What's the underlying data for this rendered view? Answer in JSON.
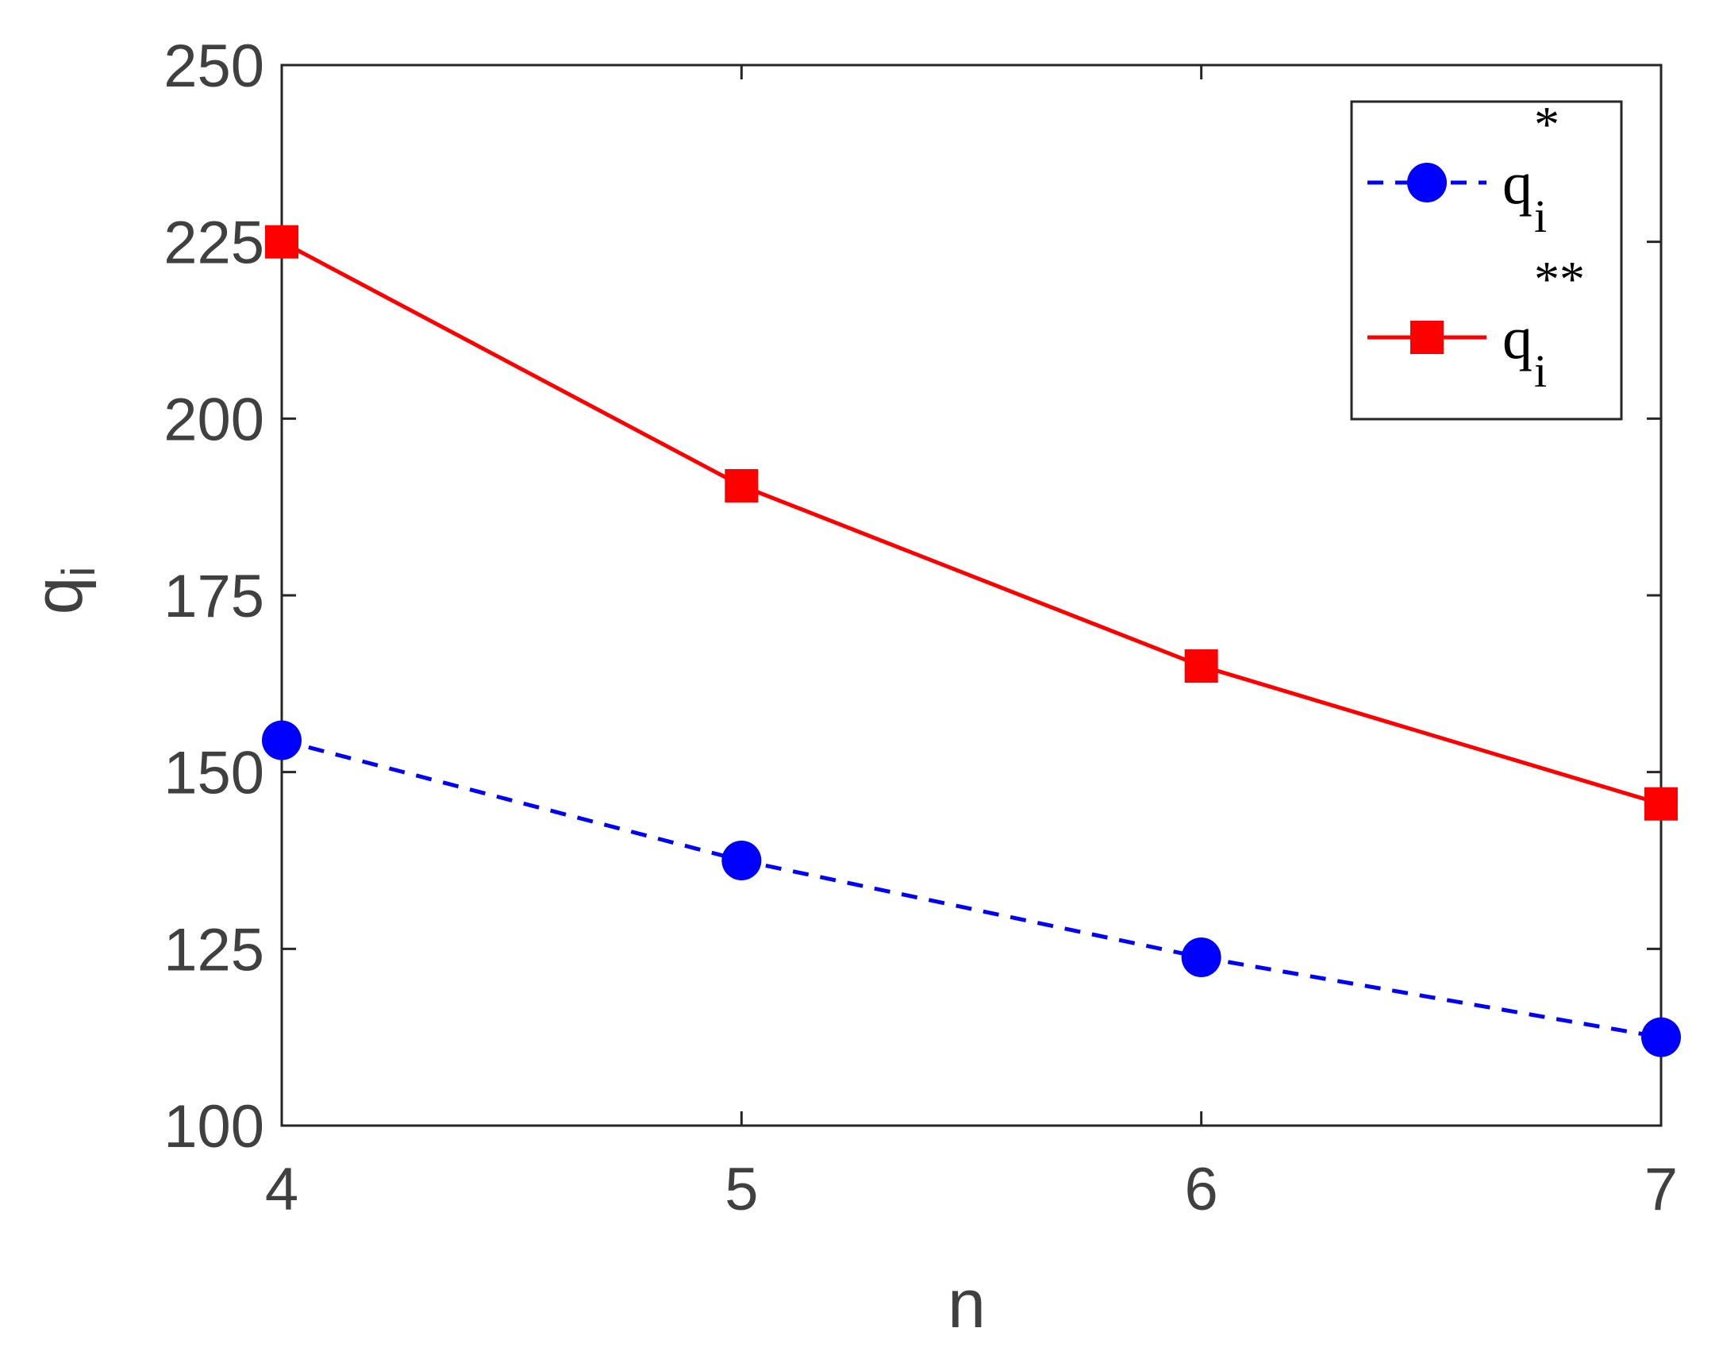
{
  "chart_data": {
    "type": "line",
    "title": "",
    "xlabel": "n",
    "ylabel": {
      "base": "q",
      "sub": "i"
    },
    "x": [
      4,
      5,
      6,
      7
    ],
    "xticks": [
      "4",
      "5",
      "6",
      "7"
    ],
    "yticks": [
      "100",
      "125",
      "150",
      "175",
      "200",
      "225",
      "250"
    ],
    "xlim": [
      4,
      7
    ],
    "ylim": [
      100,
      250
    ],
    "grid": false,
    "legend_position": "top-right",
    "series": [
      {
        "base": "q",
        "sub": "i",
        "sup": "*",
        "values": [
          154.5,
          137.5,
          123.8,
          112.5
        ],
        "color": "#0000ff",
        "line_style": "dashed",
        "marker": "circle"
      },
      {
        "base": "q",
        "sub": "i",
        "sup": "**",
        "values": [
          225,
          190.5,
          165,
          145.5
        ],
        "color": "#ff0000",
        "line_style": "solid",
        "marker": "square"
      }
    ]
  }
}
